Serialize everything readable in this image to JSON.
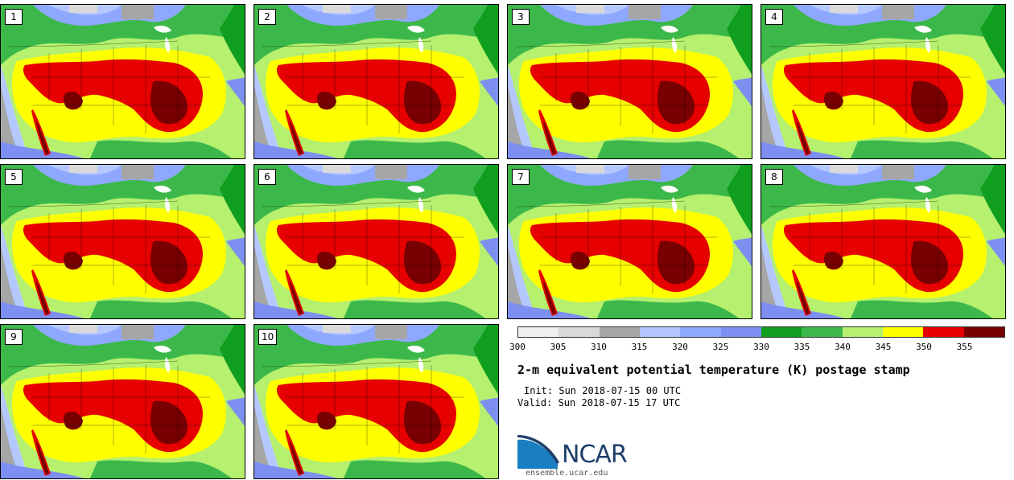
{
  "panels": [
    {
      "label": "1"
    },
    {
      "label": "2"
    },
    {
      "label": "3"
    },
    {
      "label": "4"
    },
    {
      "label": "5"
    },
    {
      "label": "6"
    },
    {
      "label": "7"
    },
    {
      "label": "8"
    },
    {
      "label": "9"
    },
    {
      "label": "10"
    }
  ],
  "colorbar": {
    "colors": [
      "#f0f0f0",
      "#d9d9d9",
      "#a6a6a6",
      "#b4c8ff",
      "#8fa8ff",
      "#7d8ff0",
      "#0f9e1e",
      "#3cb84a",
      "#b5f06e",
      "#ffff00",
      "#e60000",
      "#780000"
    ],
    "ticks": [
      "300",
      "305",
      "310",
      "315",
      "320",
      "325",
      "330",
      "335",
      "340",
      "345",
      "350",
      "355"
    ]
  },
  "title": "2-m equivalent potential temperature (K) postage stamp",
  "init": "Init: Sun 2018-07-15 00 UTC",
  "valid": "Valid: Sun 2018-07-15 17 UTC",
  "logo": {
    "text": "NCAR",
    "site": "ensemble.ucar.edu"
  }
}
